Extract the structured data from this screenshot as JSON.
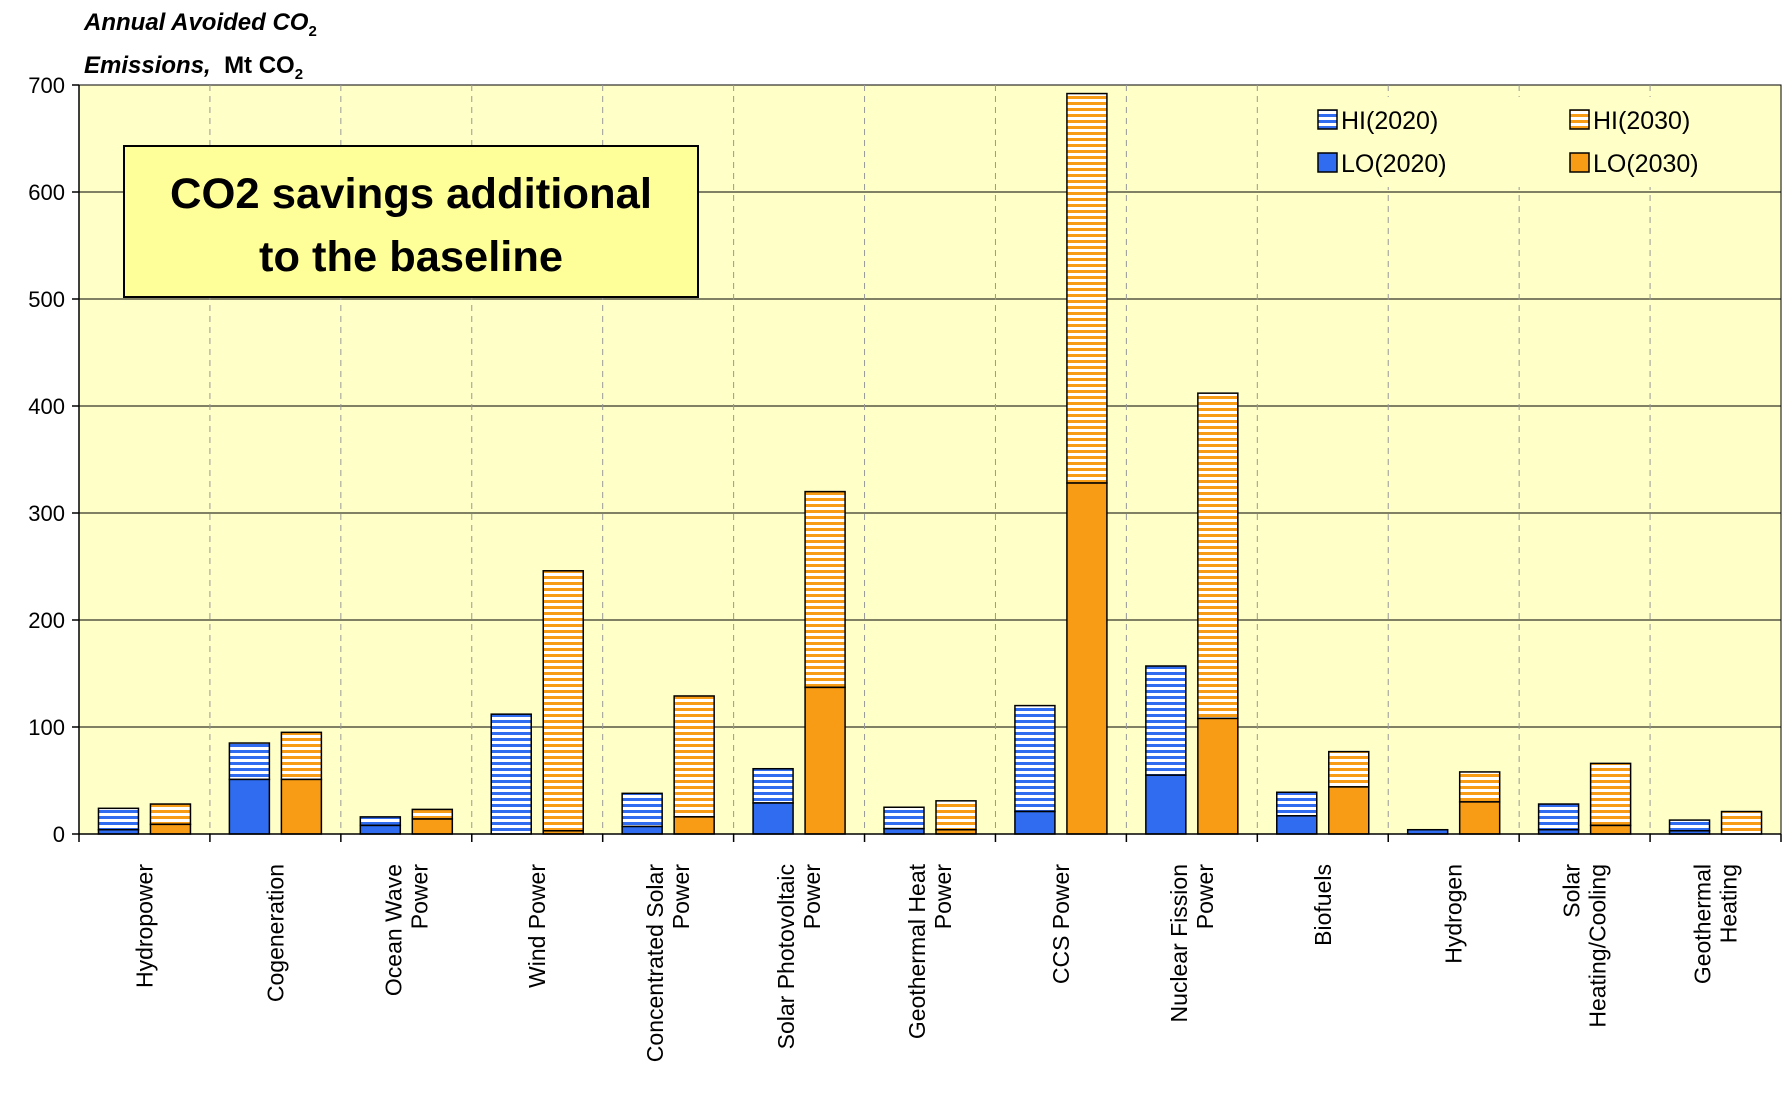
{
  "chart_data": {
    "type": "bar",
    "ylabel": {
      "line1": "Annual Avoided CO",
      "line1_sub": "2",
      "line2_em": "Emissions,",
      "line2_unit": "Mt CO",
      "line2_sub": "2"
    },
    "ylim": [
      0,
      700
    ],
    "yticks": [
      "0",
      "100",
      "200",
      "300",
      "400",
      "500",
      "600",
      "700"
    ],
    "grid": true,
    "legend_position": "top-right",
    "annotation": {
      "line1": "CO2 savings additional",
      "line2": "to the baseline"
    },
    "categories": [
      [
        "Hydropower"
      ],
      [
        "Cogeneration"
      ],
      [
        "Ocean Wave",
        "Power"
      ],
      [
        "Wind Power"
      ],
      [
        "Concentrated Solar",
        "Power"
      ],
      [
        "Solar Photovoltaic",
        "Power"
      ],
      [
        "Geothermal Heat",
        "Power"
      ],
      [
        "CCS Power"
      ],
      [
        "Nuclear Fission",
        "Power"
      ],
      [
        "Biofuels"
      ],
      [
        "Hydrogen"
      ],
      [
        "Solar",
        "Heating/Cooling"
      ],
      [
        "Geothermal",
        "Heating"
      ]
    ],
    "series": [
      {
        "name": "LO(2020)",
        "values": [
          4,
          51,
          8,
          0,
          7,
          29,
          5,
          21,
          55,
          17,
          4,
          4,
          3
        ]
      },
      {
        "name": "HI(2020)",
        "values": [
          24,
          85,
          16,
          112,
          38,
          61,
          25,
          120,
          157,
          39,
          0,
          28,
          13
        ]
      },
      {
        "name": "LO(2030)",
        "values": [
          9,
          51,
          14,
          3,
          16,
          137,
          4,
          328,
          108,
          44,
          30,
          8,
          0
        ]
      },
      {
        "name": "HI(2030)",
        "values": [
          28,
          95,
          23,
          246,
          129,
          320,
          31,
          692,
          412,
          77,
          58,
          66,
          21
        ]
      }
    ],
    "colors": {
      "blue": "#2f6cf0",
      "orange": "#f79c14",
      "plot_bg": "#ffffc8",
      "annotation_bg": "#ffff99",
      "stripe_bg": "#ffffff"
    }
  }
}
